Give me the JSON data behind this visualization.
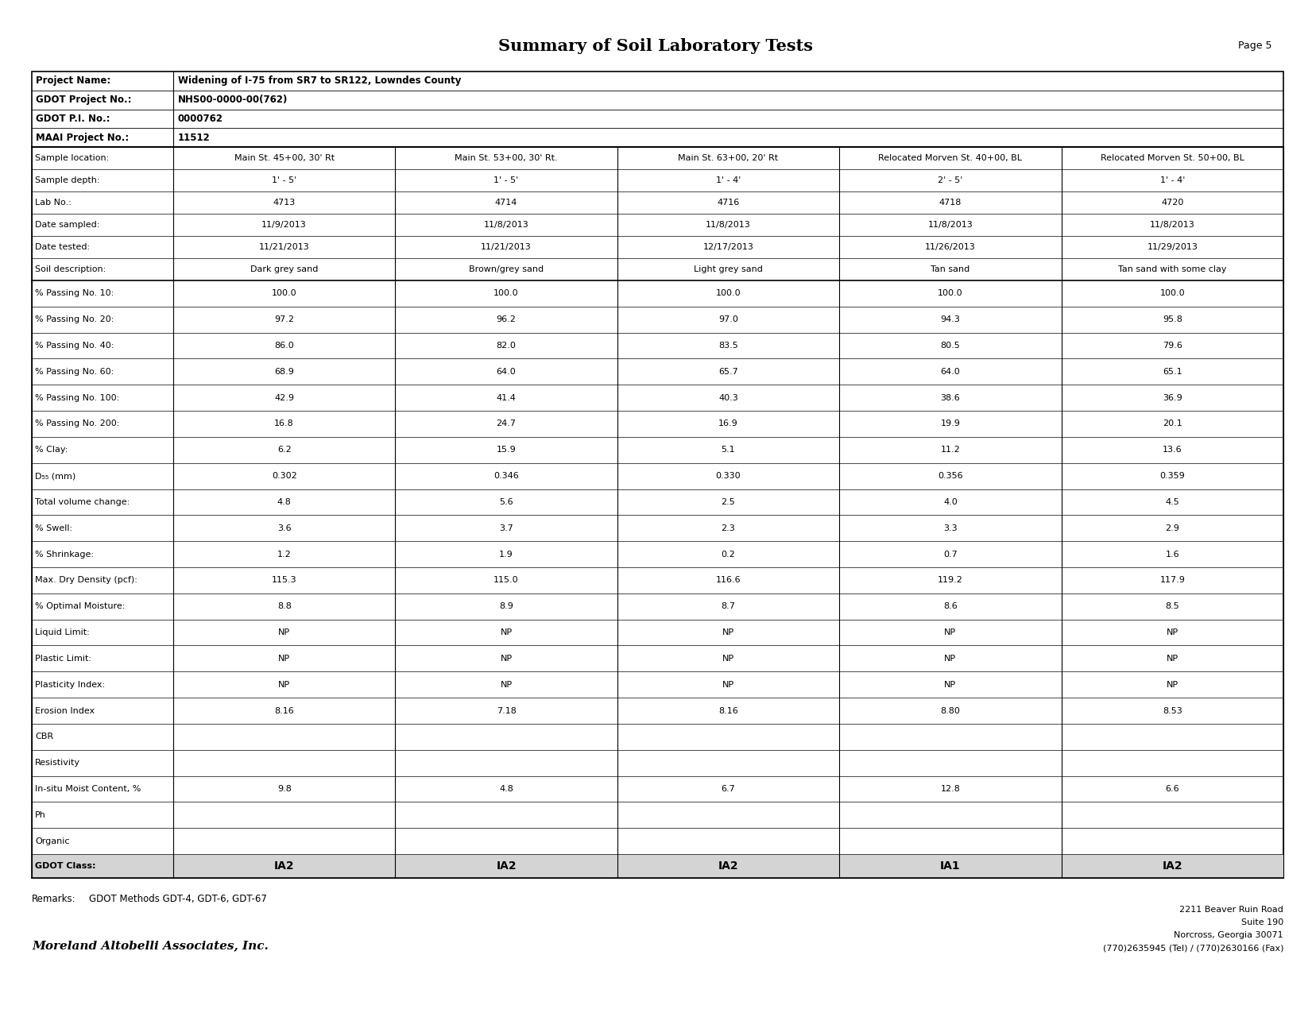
{
  "title": "Summary of Soil Laboratory Tests",
  "page": "Page 5",
  "project_info_keys": [
    "Project Name:",
    "GDOT Project No.:",
    "GDOT P.I. No.:",
    "MAAI Project No.:"
  ],
  "project_info_vals": [
    "Widening of I-75 from SR7 to SR122, Lowndes County",
    "NHS00-0000-00(762)",
    "0000762",
    "11512"
  ],
  "rows": [
    [
      "Sample location:",
      "Main St. 45+00, 30' Rt",
      "Main St. 53+00, 30' Rt.",
      "Main St. 63+00, 20' Rt",
      "Relocated Morven St. 40+00, BL",
      "Relocated Morven St. 50+00, BL"
    ],
    [
      "Sample depth:",
      "1' - 5'",
      "1' - 5'",
      "1' - 4'",
      "2' - 5'",
      "1' - 4'"
    ],
    [
      "Lab No.:",
      "4713",
      "4714",
      "4716",
      "4718",
      "4720"
    ],
    [
      "Date sampled:",
      "11/9/2013",
      "11/8/2013",
      "11/8/2013",
      "11/8/2013",
      "11/8/2013"
    ],
    [
      "Date tested:",
      "11/21/2013",
      "11/21/2013",
      "12/17/2013",
      "11/26/2013",
      "11/29/2013"
    ],
    [
      "Soil description:",
      "Dark grey sand",
      "Brown/grey sand",
      "Light grey sand",
      "Tan sand",
      "Tan sand with some clay"
    ],
    [
      "% Passing No. 10:",
      "100.0",
      "100.0",
      "100.0",
      "100.0",
      "100.0"
    ],
    [
      "% Passing No. 20:",
      "97.2",
      "96.2",
      "97.0",
      "94.3",
      "95.8"
    ],
    [
      "% Passing No. 40:",
      "86.0",
      "82.0",
      "83.5",
      "80.5",
      "79.6"
    ],
    [
      "% Passing No. 60:",
      "68.9",
      "64.0",
      "65.7",
      "64.0",
      "65.1"
    ],
    [
      "% Passing No. 100:",
      "42.9",
      "41.4",
      "40.3",
      "38.6",
      "36.9"
    ],
    [
      "% Passing No. 200:",
      "16.8",
      "24.7",
      "16.9",
      "19.9",
      "20.1"
    ],
    [
      "% Clay:",
      "6.2",
      "15.9",
      "5.1",
      "11.2",
      "13.6"
    ],
    [
      "D₅₅ (mm)",
      "0.302",
      "0.346",
      "0.330",
      "0.356",
      "0.359"
    ],
    [
      "Total volume change:",
      "4.8",
      "5.6",
      "2.5",
      "4.0",
      "4.5"
    ],
    [
      "% Swell:",
      "3.6",
      "3.7",
      "2.3",
      "3.3",
      "2.9"
    ],
    [
      "% Shrinkage:",
      "1.2",
      "1.9",
      "0.2",
      "0.7",
      "1.6"
    ],
    [
      "Max. Dry Density (pcf):",
      "115.3",
      "115.0",
      "116.6",
      "119.2",
      "117.9"
    ],
    [
      "% Optimal Moisture:",
      "8.8",
      "8.9",
      "8.7",
      "8.6",
      "8.5"
    ],
    [
      "Liquid Limit:",
      "NP",
      "NP",
      "NP",
      "NP",
      "NP"
    ],
    [
      "Plastic Limit:",
      "NP",
      "NP",
      "NP",
      "NP",
      "NP"
    ],
    [
      "Plasticity Index:",
      "NP",
      "NP",
      "NP",
      "NP",
      "NP"
    ],
    [
      "Erosion Index",
      "8.16",
      "7.18",
      "8.16",
      "8.80",
      "8.53"
    ],
    [
      "CBR",
      "",
      "",
      "",
      "",
      ""
    ],
    [
      "Resistivity",
      "",
      "",
      "",
      "",
      ""
    ],
    [
      "In-situ Moist Content, %",
      "9.8",
      "4.8",
      "6.7",
      "12.8",
      "6.6"
    ],
    [
      "Ph",
      "",
      "",
      "",
      "",
      ""
    ],
    [
      "Organic",
      "",
      "",
      "",
      "",
      ""
    ],
    [
      "GDOT Class:",
      "IA2",
      "IA2",
      "IA2",
      "IA1",
      "IA2"
    ]
  ],
  "remarks_label": "Remarks:",
  "remarks_text": "GDOT Methods GDT-4, GDT-6, GDT-67",
  "company": "Moreland Altobelli Associates, Inc.",
  "address_lines": [
    "2211 Beaver Ruin Road",
    "Suite 190",
    "Norcross, Georgia 30071",
    "(770)2635945 (Tel) / (770)2630166 (Fax)"
  ],
  "bg_color": "#ffffff",
  "border_color": "#000000",
  "gdot_row_bg": "#d4d4d4",
  "title_fontsize": 15,
  "page_fontsize": 9,
  "proj_key_fontsize": 8.5,
  "proj_val_fontsize": 8.5,
  "cell_fontsize": 8.0,
  "gdot_fontsize": 10.0,
  "footer_fontsize": 8.5,
  "company_fontsize": 11,
  "addr_fontsize": 8.0
}
